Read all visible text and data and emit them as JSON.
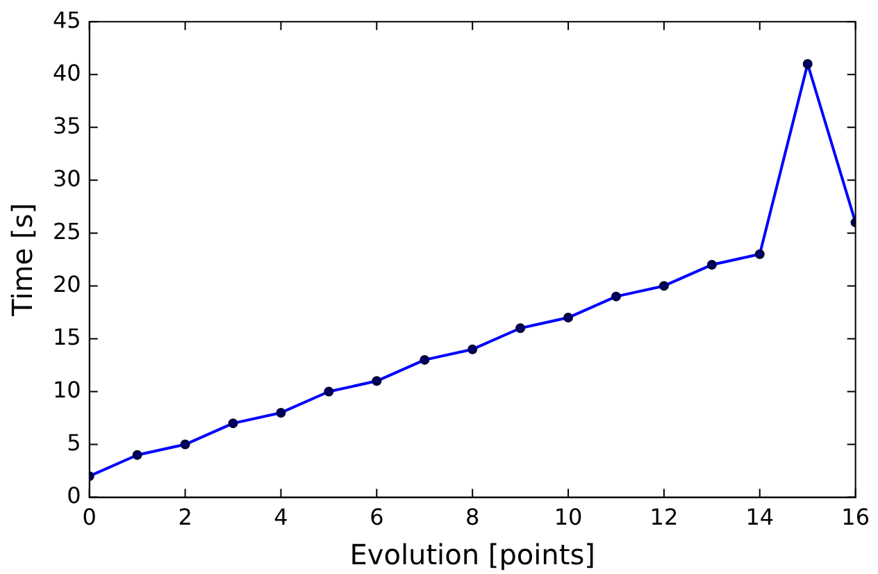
{
  "chart_data": {
    "type": "line",
    "xlabel": "Evolution [points]",
    "ylabel": "Time [s]",
    "x": [
      0,
      1,
      2,
      3,
      4,
      5,
      6,
      7,
      8,
      9,
      10,
      11,
      12,
      13,
      14,
      15,
      16
    ],
    "series": [
      {
        "color": "#0000ff",
        "values": [
          2,
          4,
          5,
          7,
          8,
          10,
          11,
          13,
          14,
          16,
          17,
          19,
          20,
          22,
          23,
          41,
          26
        ]
      }
    ],
    "xlim": [
      0,
      16
    ],
    "xticks": [
      0,
      2,
      4,
      6,
      8,
      10,
      12,
      14,
      16
    ],
    "ylim": [
      0,
      45
    ],
    "yticks": [
      0,
      5,
      10,
      15,
      20,
      25,
      30,
      35,
      40,
      45
    ],
    "grid": false,
    "legend": false,
    "marker": "circle",
    "line_style": "solid"
  }
}
